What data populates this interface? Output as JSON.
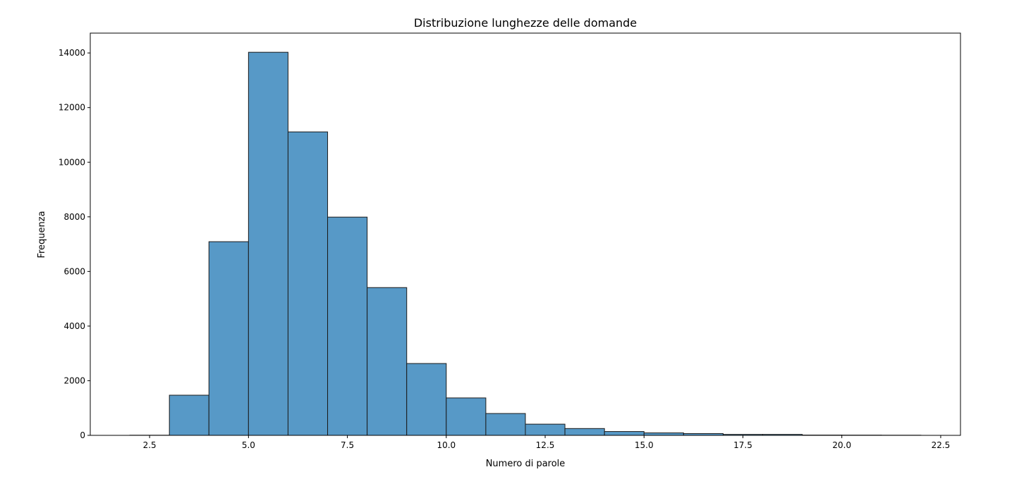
{
  "chart_data": {
    "type": "bar",
    "title": "Distribuzione lunghezze delle domande",
    "xlabel": "Numero di parole",
    "ylabel": "Frequenza",
    "bin_edges": [
      2,
      3,
      4,
      5,
      6,
      7,
      8,
      9,
      10,
      11,
      12,
      13,
      14,
      15,
      16,
      17,
      18,
      19,
      20,
      21,
      22
    ],
    "values": [
      5,
      1470,
      7090,
      14025,
      11110,
      7990,
      5410,
      2630,
      1370,
      800,
      410,
      250,
      140,
      90,
      65,
      35,
      35,
      10,
      8,
      5
    ],
    "xlim": [
      1,
      23
    ],
    "ylim": [
      0,
      14726
    ],
    "xticks": [
      "2.5",
      "5.0",
      "7.5",
      "10.0",
      "12.5",
      "15.0",
      "17.5",
      "20.0",
      "22.5"
    ],
    "yticks": [
      "0",
      "2000",
      "4000",
      "6000",
      "8000",
      "10000",
      "12000",
      "14000"
    ],
    "grid": false,
    "colors": {
      "bar_fill": "#5799c7",
      "bar_edge": "#1a1a1a"
    }
  }
}
